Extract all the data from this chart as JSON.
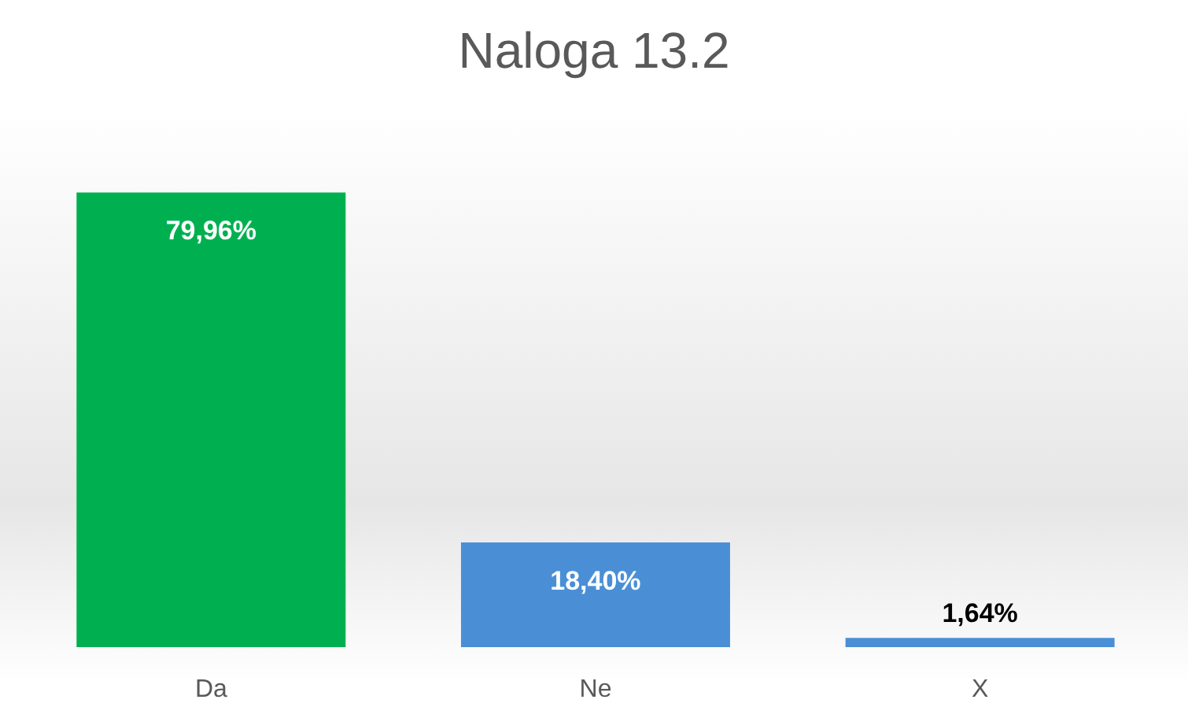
{
  "chart_data": {
    "type": "bar",
    "title": "Naloga 13.2",
    "categories": [
      "Da",
      "Ne",
      "X"
    ],
    "values": [
      79.96,
      18.4,
      1.64
    ],
    "colors": [
      "#00b050",
      "#4a8fd6",
      "#4a8fd6"
    ],
    "value_labels": [
      "79,96%",
      "18,40%",
      "1,64%"
    ]
  }
}
